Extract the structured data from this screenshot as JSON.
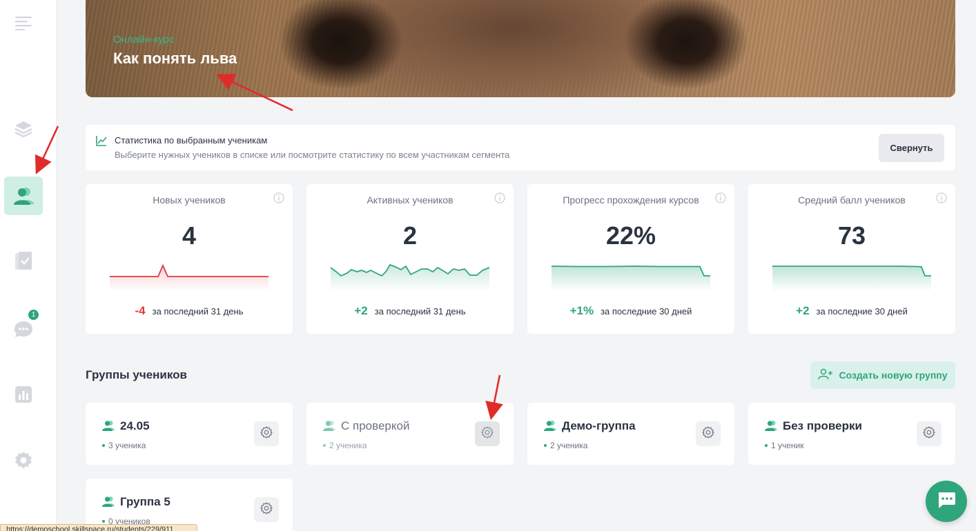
{
  "hero": {
    "subtitle": "Онлайн-курс",
    "title": "Как понять льва"
  },
  "stats": {
    "title": "Статистика по выбранным ученикам",
    "description": "Выберите нужных учеников в списке или посмотрите статистику по всем участникам сегмента",
    "collapse_label": "Свернуть"
  },
  "metrics": [
    {
      "label": "Новых учеников",
      "value": "4",
      "delta": "-4",
      "period": "за последний 31 день",
      "trend": "negative",
      "color": "#e0393e"
    },
    {
      "label": "Активных учеников",
      "value": "2",
      "delta": "+2",
      "period": "за последний 31 день",
      "trend": "positive",
      "color": "#2fa57b"
    },
    {
      "label": "Прогресс прохождения курсов",
      "value": "22%",
      "delta": "+1%",
      "period": "за последние 30 дней",
      "trend": "positive",
      "color": "#2fa57b"
    },
    {
      "label": "Средний балл учеников",
      "value": "73",
      "delta": "+2",
      "period": "за последние 30 дней",
      "trend": "positive",
      "color": "#2fa57b"
    }
  ],
  "groups": {
    "title": "Группы учеников",
    "create_label": "Создать новую группу",
    "items": [
      {
        "name": "24.05",
        "count": "3 ученика"
      },
      {
        "name": "С проверкой",
        "count": "2 ученика"
      },
      {
        "name": "Демо-группа",
        "count": "2 ученика"
      },
      {
        "name": "Без проверки",
        "count": "1 ученик"
      },
      {
        "name": "Группа 5",
        "count": "0 учеников"
      }
    ]
  },
  "sidebar": {
    "items": [
      {
        "icon": "menu-icon"
      },
      {
        "icon": "layers-icon"
      },
      {
        "icon": "users-icon",
        "active": true
      },
      {
        "icon": "assignments-icon"
      },
      {
        "icon": "chat-icon",
        "badge": "1"
      },
      {
        "icon": "analytics-icon"
      },
      {
        "icon": "settings-icon"
      }
    ]
  },
  "status_bar": {
    "url": "https://demoschool.skillspace.ru/students/229/911"
  },
  "colors": {
    "accent": "#2fa57b",
    "negative": "#e0393e",
    "active_bg": "#cfeee6"
  }
}
